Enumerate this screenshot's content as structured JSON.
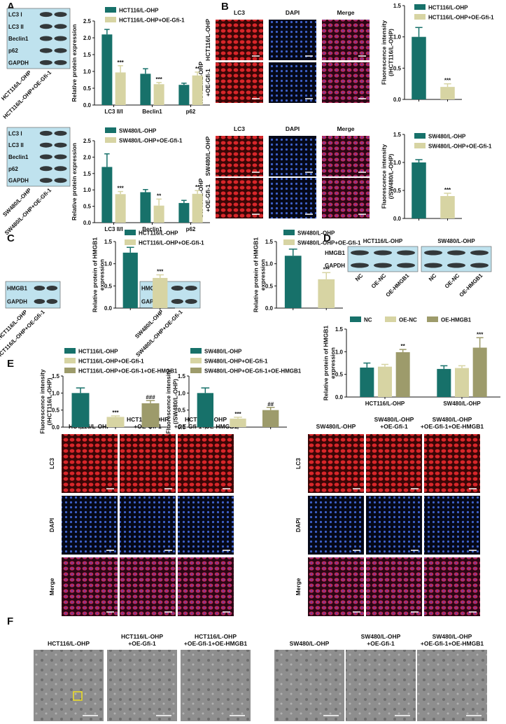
{
  "panels": [
    "A",
    "B",
    "C",
    "D",
    "E",
    "F"
  ],
  "blots": [
    {
      "rows": [
        "LC3 I",
        "LC3 II",
        "Beclin1",
        "p62",
        "GAPDH"
      ],
      "lanes": [
        "HCT116/L-OHP",
        "HCT116/L-OHP+OE-Gfi-1"
      ]
    },
    {
      "rows": [
        "LC3 I",
        "LC3 II",
        "Beclin1",
        "p62",
        "GAPDH"
      ],
      "lanes": [
        "SW480/L-OHP",
        "SW480/L-OHP+OE-Gfi-1"
      ]
    },
    {
      "rows": [
        "HMGB1",
        "GAPDH"
      ],
      "lanes": [
        "HCT116/L-OHP",
        "HCT116/L-OHP+OE-Gfi-1"
      ]
    },
    {
      "rows": [
        "HMGB1",
        "GAPDH"
      ],
      "lanes": [
        "SW480/L-OHP",
        "SW480/L-OHP+OE-Gfi-1"
      ]
    }
  ],
  "blot_d": {
    "rows": [
      "HMGB1",
      "GAPDH"
    ],
    "groups": [
      "HCT116/L-OHP",
      "SW480/L-OHP"
    ],
    "lanes": [
      "NC",
      "OE-NC",
      "OE-HMGB1"
    ]
  },
  "micrographs": [
    {
      "columns": [
        "LC3",
        "DAPI",
        "Merge"
      ],
      "rows": [
        [
          "HCT116/L-OHP"
        ],
        [
          "HCT116/L-OHP",
          "+OE-Gfi-1"
        ]
      ]
    },
    {
      "columns": [
        "LC3",
        "DAPI",
        "Merge"
      ],
      "rows": [
        [
          "SW480/L-OHP"
        ],
        [
          "SW480/L-OHP",
          "+OE-Gfi-1"
        ]
      ]
    },
    {
      "columns": [
        [
          "HCT116/L-OHP"
        ],
        [
          "HCT116/L-OHP",
          "+OE-Gfi-1"
        ],
        [
          "HCT116/L-OHP",
          "+OE-Gfi-1+OE-HMGB1"
        ]
      ],
      "rows": [
        "LC3",
        "DAPI",
        "Merge"
      ]
    },
    {
      "columns": [
        [
          "SW480/L-OHP"
        ],
        [
          "SW480/L-OHP",
          "+OE-Gfi-1"
        ],
        [
          "SW480/L-OHP",
          "+OE-Gfi-1+OE-HMGB1"
        ]
      ],
      "rows": [
        "LC3",
        "DAPI",
        "Merge"
      ]
    }
  ],
  "tem": [
    {
      "columns": [
        [
          "HCT116/L-OHP"
        ],
        [
          "HCT116/L-OHP",
          "+OE-Gfi-1"
        ],
        [
          "HCT116/L-OHP",
          "+OE-Gfi-1+OE-HMGB1"
        ]
      ]
    },
    {
      "columns": [
        [
          "SW480/L-OHP"
        ],
        [
          "SW480/L-OHP",
          "+OE-Gfi-1"
        ],
        [
          "SW480/L-OHP",
          "+OE-Gfi-1+OE-HMGB1"
        ]
      ]
    }
  ],
  "chart_data": [
    {
      "type": "bar",
      "ylabel": [
        "Relative protein expression"
      ],
      "categories": [
        "LC3 II/I",
        "Beclin1",
        "p62"
      ],
      "ylim": [
        0,
        2.5
      ],
      "yticks": [
        {
          "value": 0,
          "label": "0.0"
        },
        0.5,
        {
          "value": 1,
          "label": "1.0"
        },
        1.5,
        {
          "value": 2,
          "label": "2.0"
        },
        2.5
      ],
      "series": [
        {
          "name": "HCT116/L-OHP",
          "color": "#17716a",
          "values": [
            2.1,
            0.93,
            0.6
          ],
          "errors": [
            0.15,
            0.15,
            0.05
          ],
          "sig": [
            null,
            null,
            null
          ]
        },
        {
          "name": "HCT116/L-OHP+OE-Gfi-1",
          "color": "#d7d4a3",
          "values": [
            0.97,
            0.62,
            0.88
          ],
          "errors": [
            0.2,
            0.05,
            0.1
          ],
          "sig": [
            "***",
            "***",
            "**"
          ]
        }
      ]
    },
    {
      "type": "bar",
      "ylabel": [
        "Relative protein expression"
      ],
      "categories": [
        "LC3 II/I",
        "Beclin1",
        "p62"
      ],
      "ylim": [
        0,
        2.5
      ],
      "yticks": [
        {
          "value": 0,
          "label": "0.0"
        },
        0.5,
        {
          "value": 1,
          "label": "1.0"
        },
        1.5,
        {
          "value": 2,
          "label": "2.0"
        },
        2.5
      ],
      "series": [
        {
          "name": "SW480/L-OHP",
          "color": "#17716a",
          "values": [
            1.7,
            0.93,
            0.6
          ],
          "errors": [
            0.4,
            0.08,
            0.08
          ],
          "sig": [
            null,
            null,
            null
          ]
        },
        {
          "name": "SW480/L-OHP+OE-Gfi-1",
          "color": "#d7d4a3",
          "values": [
            0.87,
            0.52,
            0.88
          ],
          "errors": [
            0.08,
            0.2,
            0.1
          ],
          "sig": [
            "***",
            "**",
            "**"
          ]
        }
      ]
    },
    {
      "type": "bar",
      "ylabel": [
        "Fluorescence intensity",
        "(/HCT116/L-OHP)"
      ],
      "ylim": [
        0,
        1.5
      ],
      "yticks": [
        {
          "value": 0,
          "label": "0.0"
        },
        0.5,
        {
          "value": 1,
          "label": "1.0"
        },
        1.5
      ],
      "series": [
        {
          "name": "HCT116/L-OHP",
          "color": "#17716a",
          "values": [
            1.0
          ],
          "errors": [
            0.15
          ],
          "sig": [
            null
          ]
        },
        {
          "name": "HCT116/L-OHP+OE-Gfi-1",
          "color": "#d7d4a3",
          "values": [
            0.2
          ],
          "errors": [
            0.05
          ],
          "sig": [
            "***"
          ]
        }
      ]
    },
    {
      "type": "bar",
      "ylabel": [
        "Fluorescence intensity",
        "(/SW480/L-OHP)"
      ],
      "ylim": [
        0,
        1.5
      ],
      "yticks": [
        {
          "value": 0,
          "label": "0.0"
        },
        0.5,
        {
          "value": 1,
          "label": "1.0"
        },
        1.5
      ],
      "series": [
        {
          "name": "SW480/L-OHP",
          "color": "#17716a",
          "values": [
            1.0
          ],
          "errors": [
            0.05
          ],
          "sig": [
            null
          ]
        },
        {
          "name": "SW480/L-OHP+OE-Gfi-1",
          "color": "#d7d4a3",
          "values": [
            0.4
          ],
          "errors": [
            0.05
          ],
          "sig": [
            "***"
          ]
        }
      ]
    },
    {
      "type": "bar",
      "ylabel": [
        "Relative protein of HMGB1",
        "expression"
      ],
      "ylim": [
        0,
        1.5
      ],
      "yticks": [
        {
          "value": 0,
          "label": "0.0"
        },
        0.5,
        {
          "value": 1,
          "label": "1.0"
        },
        1.5
      ],
      "series": [
        {
          "name": "HCT116/L-OHP",
          "color": "#17716a",
          "values": [
            1.25
          ],
          "errors": [
            0.12
          ],
          "sig": [
            null
          ]
        },
        {
          "name": "HCT116/L-OHP+OE-Gfi-1",
          "color": "#d7d4a3",
          "values": [
            0.68
          ],
          "errors": [
            0.07
          ],
          "sig": [
            "***"
          ]
        }
      ]
    },
    {
      "type": "bar",
      "ylabel": [
        "Relative protein of HMGB1",
        "expression"
      ],
      "ylim": [
        0,
        1.5
      ],
      "yticks": [
        {
          "value": 0,
          "label": "0.0"
        },
        0.5,
        {
          "value": 1,
          "label": "1.0"
        },
        1.5
      ],
      "series": [
        {
          "name": "SW480/L-OHP",
          "color": "#17716a",
          "values": [
            1.18
          ],
          "errors": [
            0.15
          ],
          "sig": [
            null
          ]
        },
        {
          "name": "SW480/L-OHP+OE-Gfi-1",
          "color": "#d7d4a3",
          "values": [
            0.65
          ],
          "errors": [
            0.15
          ],
          "sig": [
            "***"
          ]
        }
      ]
    },
    {
      "type": "bar",
      "ylabel": [
        "Relative protein of HMGB1",
        "expression"
      ],
      "categories": [
        "HCT116/L-OHP",
        "SW480/L-OHP"
      ],
      "legend": "horizontal",
      "ylim": [
        0,
        1.5
      ],
      "yticks": [
        {
          "value": 0,
          "label": "0.0"
        },
        0.5,
        {
          "value": 1,
          "label": "1.0"
        },
        1.5
      ],
      "series": [
        {
          "name": "NC",
          "color": "#17716a",
          "values": [
            0.65,
            0.62
          ],
          "errors": [
            0.1,
            0.07
          ],
          "sig": [
            null,
            null
          ]
        },
        {
          "name": "OE-NC",
          "color": "#d7d4a3",
          "values": [
            0.67,
            0.64
          ],
          "errors": [
            0.05,
            0.05
          ],
          "sig": [
            null,
            null
          ]
        },
        {
          "name": "OE-HMGB1",
          "color": "#9d9b6b",
          "values": [
            0.99,
            1.09
          ],
          "errors": [
            0.06,
            0.22
          ],
          "sig": [
            "**",
            "***"
          ]
        }
      ]
    },
    {
      "type": "bar",
      "ylabel": [
        "Fluorescence intensity",
        "(/HCT116/L-OHP)"
      ],
      "ylim": [
        0,
        1.5
      ],
      "yticks": [
        {
          "value": 0,
          "label": "0.0"
        },
        0.5,
        {
          "value": 1,
          "label": "1.0"
        },
        1.5
      ],
      "series": [
        {
          "name": "HCT116/L-OHP",
          "color": "#17716a",
          "values": [
            1.0
          ],
          "errors": [
            0.15
          ],
          "sig": [
            null
          ]
        },
        {
          "name": "HCT116/L-OHP+OE-Gfi-1",
          "color": "#d7d4a3",
          "values": [
            0.3
          ],
          "errors": [
            0.03
          ],
          "sig": [
            "***"
          ]
        },
        {
          "name": "HCT116/L-OHP+OE-Gfi-1+OE-HMGB1",
          "color": "#9d9b6b",
          "values": [
            0.7
          ],
          "errors": [
            0.08
          ],
          "sig": [
            "###"
          ]
        }
      ]
    },
    {
      "type": "bar",
      "ylabel": [
        "Fluorescence intensity",
        "(/SW480/L-OHP)"
      ],
      "ylim": [
        0,
        1.5
      ],
      "yticks": [
        {
          "value": 0,
          "label": "0.0"
        },
        0.5,
        {
          "value": 1,
          "label": "1.0"
        },
        1.5
      ],
      "series": [
        {
          "name": "SW480/L-OHP",
          "color": "#17716a",
          "values": [
            1.0
          ],
          "errors": [
            0.15
          ],
          "sig": [
            null
          ]
        },
        {
          "name": "SW480/L-OHP+OE-Gfi-1",
          "color": "#d7d4a3",
          "values": [
            0.25
          ],
          "errors": [
            0.04
          ],
          "sig": [
            "***"
          ]
        },
        {
          "name": "SW480/L-OHP+OE-Gfi-1+OE-HMGB1",
          "color": "#9d9b6b",
          "values": [
            0.5
          ],
          "errors": [
            0.08
          ],
          "sig": [
            "##"
          ]
        }
      ]
    }
  ]
}
